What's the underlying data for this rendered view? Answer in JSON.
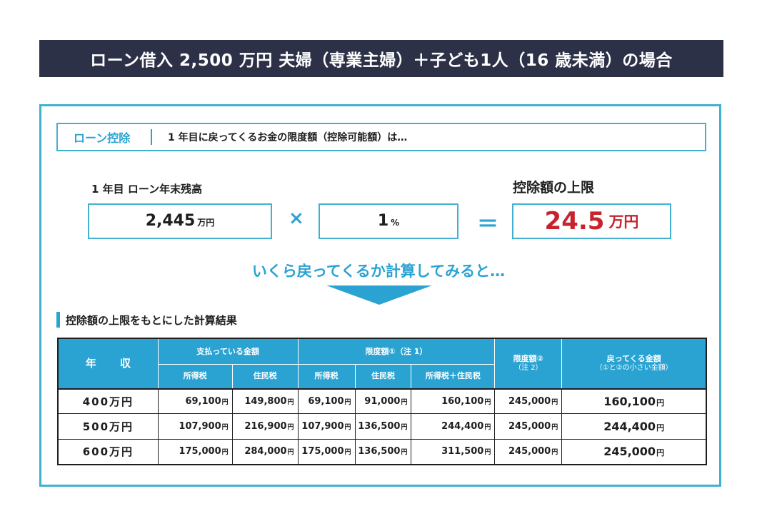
{
  "title": "ローン借入 2,500 万円 夫婦（専業主婦）＋子ども1人（16 歳未満）の場合",
  "heading": {
    "tag": "ローン控除",
    "text": "1 年目に戻ってくるお金の限度額（控除可能額）は…"
  },
  "calc": {
    "balance_label": "1 年目 ローン年末残高",
    "balance_value": "2,445",
    "balance_unit": "万円",
    "times": "×",
    "rate_value": "1",
    "rate_unit": "%",
    "equals": "＝",
    "limit_label": "控除額の上限",
    "limit_value": "24.5",
    "limit_unit": "万円"
  },
  "lead": "いくら戻ってくるか計算してみると…",
  "section_title": "控除額の上限をもとにした計算結果",
  "table": {
    "header": {
      "income": "年 収",
      "paid_group": "支払っている金額",
      "paid_income_tax": "所得税",
      "paid_resident_tax": "住民税",
      "limit1_group": "限度額①（注 1）",
      "limit1_income_tax": "所得税",
      "limit1_resident_tax": "住民税",
      "limit1_total": "所得税＋住民税",
      "limit2": "限度額②",
      "limit2_note": "（注 2）",
      "refund": "戻ってくる金額",
      "refund_note": "（①と②の小さい金額）"
    },
    "yen": "円",
    "rows": [
      {
        "income": "400万円",
        "paid_income_tax": "69,100",
        "paid_resident_tax": "149,800",
        "limit1_income_tax": "69,100",
        "limit1_resident_tax": "91,000",
        "limit1_total": "160,100",
        "limit2": "245,000",
        "refund": "160,100"
      },
      {
        "income": "500万円",
        "paid_income_tax": "107,900",
        "paid_resident_tax": "216,900",
        "limit1_income_tax": "107,900",
        "limit1_resident_tax": "136,500",
        "limit1_total": "244,400",
        "limit2": "245,000",
        "refund": "244,400"
      },
      {
        "income": "600万円",
        "paid_income_tax": "175,000",
        "paid_resident_tax": "284,000",
        "limit1_income_tax": "175,000",
        "limit1_resident_tax": "136,500",
        "limit1_total": "311,500",
        "limit2": "245,000",
        "refund": "245,000"
      }
    ]
  },
  "colors": {
    "title_bg": "#2c3147",
    "accent": "#2aa3d2",
    "frame": "#42b1cf",
    "result_red": "#c8232c"
  }
}
